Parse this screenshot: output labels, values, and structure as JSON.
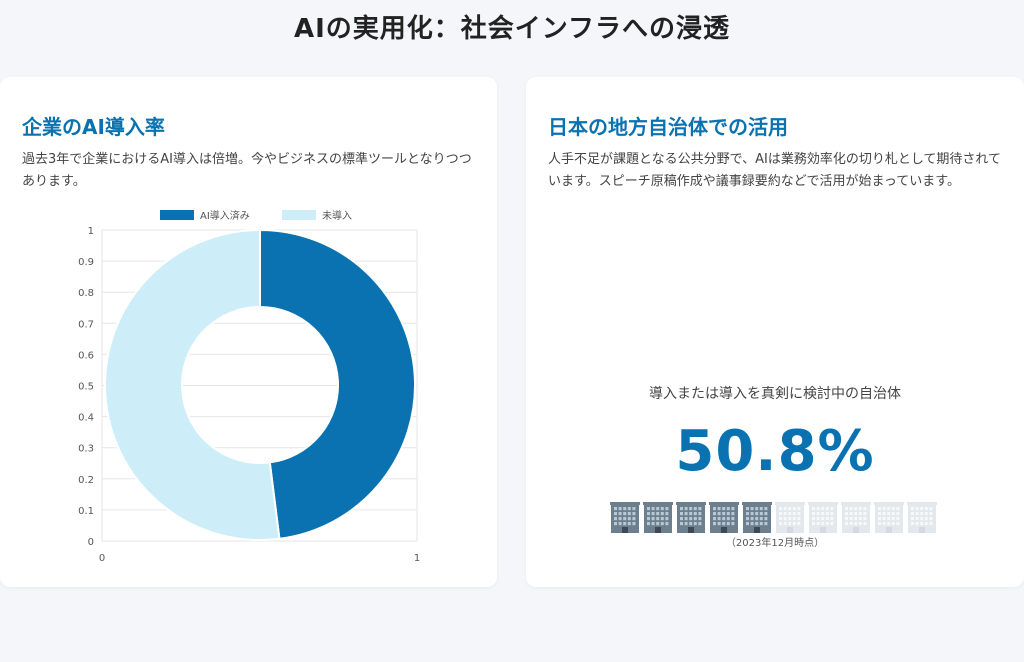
{
  "page": {
    "title": "AIの実用化：社会インフラへの浸透"
  },
  "left_card": {
    "title": "企業のAI導入率",
    "description": "過去3年で企業におけるAI導入は倍増。今やビジネスの標準ツールとなりつつあります。"
  },
  "right_card": {
    "title": "日本の地方自治体での活用",
    "description": "人手不足が課題となる公共分野で、AIは業務効率化の切り札として期待されています。スピーチ原稿作成や議事録要約などで活用が始まっています。",
    "stat_label": "導入または導入を真剣に検討中の自治体",
    "stat_value": "50.8%",
    "stat_note": "（2023年12月時点）",
    "buildings_total": 10,
    "buildings_active": 5,
    "colors": {
      "active": "#6b7f8e",
      "inactive": "#e3e8ec"
    }
  },
  "chart_data": {
    "type": "pie",
    "variant": "doughnut",
    "title": "",
    "labels": [
      "AI導入済み",
      "未導入"
    ],
    "values": [
      48,
      52
    ],
    "colors": [
      "#0a72b0",
      "#cdeef8"
    ],
    "legend": "top",
    "grid": true,
    "x_ticks": [
      "0",
      "1"
    ],
    "y_ticks": [
      "0",
      "0.1",
      "0.2",
      "0.3",
      "0.4",
      "0.5",
      "0.6",
      "0.7",
      "0.8",
      "0.9",
      "1"
    ],
    "xlim": [
      0,
      1
    ],
    "ylim": [
      0,
      1
    ]
  }
}
